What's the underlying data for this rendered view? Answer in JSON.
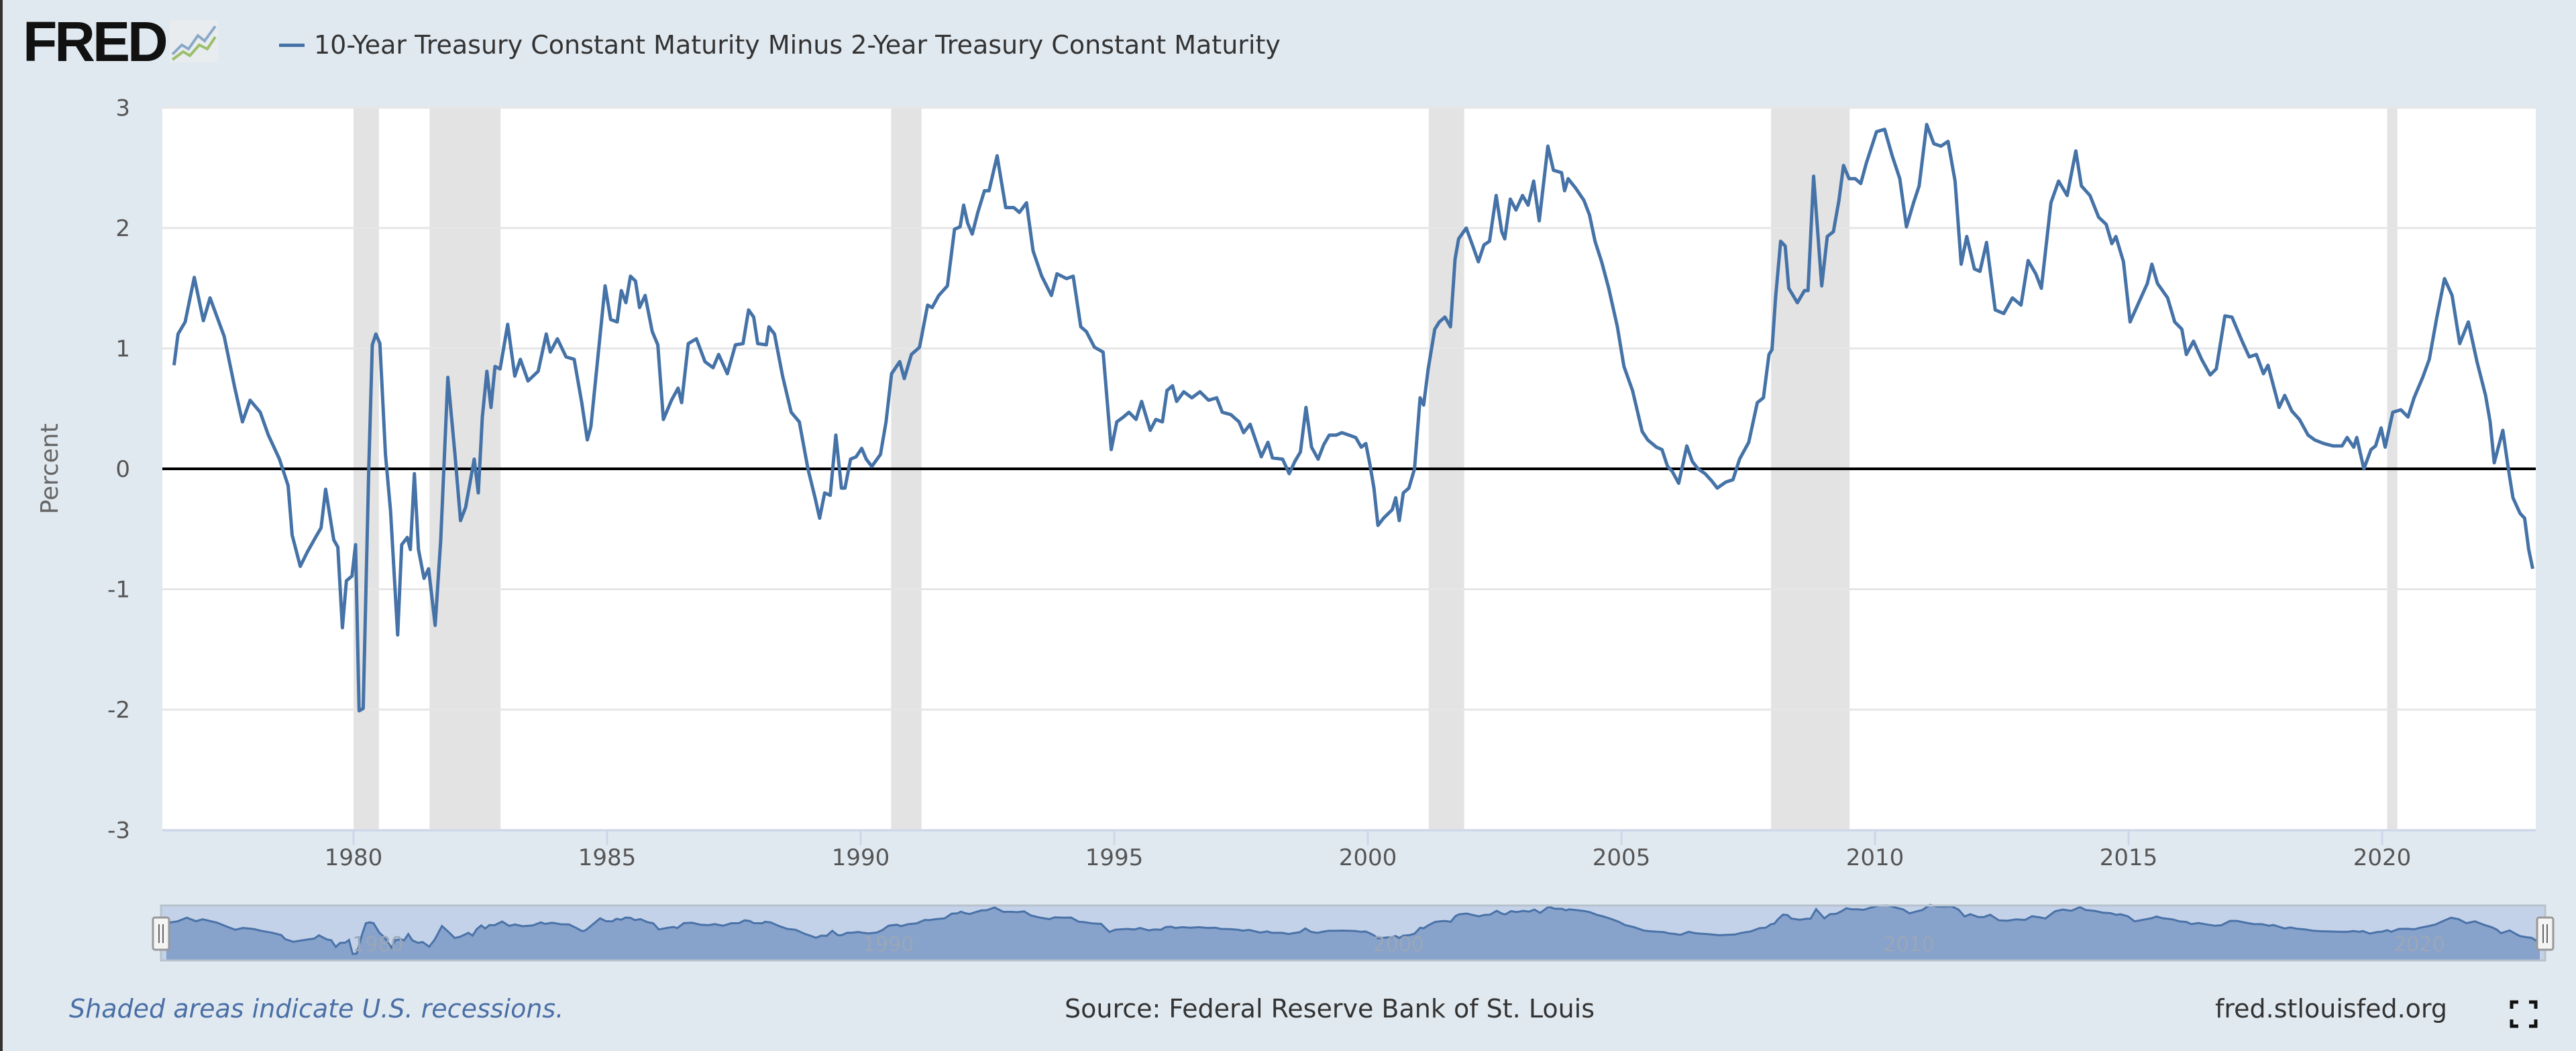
{
  "header": {
    "logo_text": "FRED",
    "logo_icon": "line-chart-icon",
    "series_title": "10-Year Treasury Constant Maturity Minus 2-Year Treasury Constant Maturity"
  },
  "footer": {
    "recession_note": "Shaded areas indicate U.S. recessions.",
    "source": "Source: Federal Reserve Bank of St. Louis",
    "site": "fred.stlouisfed.org",
    "fullscreen_icon": "fullscreen-icon"
  },
  "colors": {
    "line": "#4572a7",
    "recession": "#e3e3e3",
    "background": "#e1e9f0",
    "zero_line": "#000000",
    "navigator_fill": "#87a2cb",
    "navigator_bg": "#c3d2e8"
  },
  "chart_data": {
    "type": "line",
    "title": "10-Year Treasury Constant Maturity Minus 2-Year Treasury Constant Maturity",
    "xlabel": "",
    "ylabel": "Percent",
    "xlim": [
      1976.2,
      2023.0
    ],
    "ylim": [
      -3,
      3
    ],
    "yticks": [
      "3",
      "2",
      "1",
      "0",
      "-1",
      "-2",
      "-3"
    ],
    "yticks_values": [
      3,
      2,
      1,
      0,
      -1,
      -2,
      -3
    ],
    "xticks": [
      "1980",
      "1985",
      "1990",
      "1995",
      "2000",
      "2005",
      "2010",
      "2015",
      "2020"
    ],
    "xticks_values": [
      1980,
      1985,
      1990,
      1995,
      2000,
      2005,
      2010,
      2015,
      2020
    ],
    "navigator_ticks": [
      "1980",
      "1990",
      "2000",
      "2010",
      "2020"
    ],
    "navigator_ticks_values": [
      1980,
      1990,
      2000,
      2010,
      2020
    ],
    "grid": true,
    "legend": "top-left",
    "recessions": [
      [
        1980.0,
        1980.5
      ],
      [
        1981.5,
        1982.9
      ],
      [
        1990.6,
        1991.2
      ],
      [
        2001.2,
        2001.9
      ],
      [
        2007.95,
        2009.5
      ],
      [
        2020.1,
        2020.3
      ]
    ],
    "series": [
      {
        "name": "10-Year Treasury Constant Maturity Minus 2-Year Treasury Constant Maturity",
        "x": [
          1976.46,
          1976.54,
          1976.68,
          1976.86,
          1977.04,
          1977.17,
          1977.45,
          1977.66,
          1977.81,
          1977.96,
          1978.16,
          1978.32,
          1978.54,
          1978.71,
          1978.79,
          1978.95,
          1979.09,
          1979.25,
          1979.36,
          1979.45,
          1979.61,
          1979.69,
          1979.78,
          1979.86,
          1979.97,
          1980.04,
          1980.11,
          1980.19,
          1980.3,
          1980.37,
          1980.44,
          1980.52,
          1980.63,
          1980.73,
          1980.87,
          1980.95,
          1981.06,
          1981.12,
          1981.2,
          1981.28,
          1981.39,
          1981.48,
          1981.61,
          1981.72,
          1981.86,
          1982.0,
          1982.11,
          1982.21,
          1982.38,
          1982.46,
          1982.54,
          1982.63,
          1982.71,
          1982.79,
          1982.89,
          1983.04,
          1983.18,
          1983.29,
          1983.44,
          1983.64,
          1983.8,
          1983.88,
          1984.02,
          1984.19,
          1984.35,
          1984.5,
          1984.61,
          1984.68,
          1984.96,
          1985.07,
          1985.2,
          1985.28,
          1985.37,
          1985.46,
          1985.56,
          1985.64,
          1985.75,
          1985.89,
          1986.0,
          1986.11,
          1986.27,
          1986.4,
          1986.47,
          1986.6,
          1986.76,
          1986.93,
          1987.09,
          1987.2,
          1987.37,
          1987.53,
          1987.68,
          1987.79,
          1987.89,
          1987.97,
          1988.14,
          1988.19,
          1988.3,
          1988.46,
          1988.63,
          1988.79,
          1988.96,
          1989.1,
          1989.19,
          1989.29,
          1989.4,
          1989.51,
          1989.62,
          1989.69,
          1989.8,
          1989.91,
          1990.02,
          1990.11,
          1990.22,
          1990.39,
          1990.5,
          1990.61,
          1990.77,
          1990.86,
          1991.0,
          1991.16,
          1991.32,
          1991.41,
          1991.54,
          1991.71,
          1991.85,
          1991.96,
          1992.03,
          1992.11,
          1992.2,
          1992.31,
          1992.44,
          1992.53,
          1992.69,
          1992.86,
          1993.02,
          1993.13,
          1993.27,
          1993.4,
          1993.57,
          1993.76,
          1993.87,
          1994.06,
          1994.19,
          1994.34,
          1994.45,
          1994.61,
          1994.78,
          1994.94,
          1995.05,
          1995.18,
          1995.29,
          1995.43,
          1995.54,
          1995.71,
          1995.82,
          1995.95,
          1996.04,
          1996.15,
          1996.23,
          1996.37,
          1996.53,
          1996.69,
          1996.86,
          1997.02,
          1997.13,
          1997.3,
          1997.46,
          1997.55,
          1997.68,
          1997.9,
          1998.03,
          1998.12,
          1998.32,
          1998.45,
          1998.56,
          1998.67,
          1998.78,
          1998.89,
          1999.02,
          1999.13,
          1999.24,
          1999.38,
          1999.49,
          1999.63,
          1999.76,
          1999.87,
          1999.96,
          2000.04,
          2000.12,
          2000.2,
          2000.31,
          2000.48,
          2000.55,
          2000.62,
          2000.7,
          2000.81,
          2000.92,
          2001.03,
          2001.1,
          2001.19,
          2001.32,
          2001.41,
          2001.52,
          2001.63,
          2001.72,
          2001.79,
          2001.94,
          2002.07,
          2002.18,
          2002.29,
          2002.4,
          2002.53,
          2002.64,
          2002.7,
          2002.81,
          2002.92,
          2003.05,
          2003.16,
          2003.27,
          2003.38,
          2003.55,
          2003.66,
          2003.82,
          2003.88,
          2003.95,
          2004.1,
          2004.26,
          2004.37,
          2004.48,
          2004.61,
          2004.75,
          2004.92,
          2005.05,
          2005.22,
          2005.41,
          2005.52,
          2005.69,
          2005.8,
          2005.91,
          2006.0,
          2006.13,
          2006.29,
          2006.4,
          2006.51,
          2006.65,
          2006.78,
          2006.89,
          2007.06,
          2007.2,
          2007.33,
          2007.51,
          2007.68,
          2007.8,
          2007.91,
          2007.97,
          2008.04,
          2008.14,
          2008.23,
          2008.3,
          2008.47,
          2008.61,
          2008.68,
          2008.79,
          2008.95,
          2009.06,
          2009.18,
          2009.29,
          2009.38,
          2009.49,
          2009.61,
          2009.72,
          2009.83,
          2010.03,
          2010.19,
          2010.34,
          2010.49,
          2010.62,
          2010.76,
          2010.87,
          2011.02,
          2011.16,
          2011.3,
          2011.44,
          2011.58,
          2011.7,
          2011.81,
          2011.96,
          2012.07,
          2012.2,
          2012.37,
          2012.54,
          2012.71,
          2012.88,
          2013.02,
          2013.17,
          2013.28,
          2013.47,
          2013.62,
          2013.79,
          2013.96,
          2014.07,
          2014.24,
          2014.41,
          2014.56,
          2014.67,
          2014.75,
          2014.9,
          2015.03,
          2015.2,
          2015.37,
          2015.46,
          2015.57,
          2015.77,
          2015.91,
          2016.05,
          2016.14,
          2016.28,
          2016.44,
          2016.61,
          2016.73,
          2016.9,
          2017.04,
          2017.24,
          2017.38,
          2017.52,
          2017.66,
          2017.75,
          2017.97,
          2018.08,
          2018.22,
          2018.37,
          2018.54,
          2018.67,
          2018.85,
          2019.04,
          2019.21,
          2019.31,
          2019.44,
          2019.5,
          2019.64,
          2019.78,
          2019.87,
          2019.98,
          2020.06,
          2020.21,
          2020.37,
          2020.51,
          2020.63,
          2020.8,
          2020.93,
          2021.08,
          2021.23,
          2021.38,
          2021.53,
          2021.7,
          2021.87,
          2022.04,
          2022.13,
          2022.21,
          2022.38,
          2022.49,
          2022.58,
          2022.72,
          2022.81,
          2022.89,
          2022.97
        ],
        "y": [
          0.86,
          1.12,
          1.22,
          1.59,
          1.23,
          1.42,
          1.1,
          0.67,
          0.39,
          0.57,
          0.47,
          0.28,
          0.08,
          -0.14,
          -0.55,
          -0.81,
          -0.69,
          -0.57,
          -0.49,
          -0.17,
          -0.59,
          -0.65,
          -1.32,
          -0.93,
          -0.89,
          -0.63,
          -2.01,
          -1.99,
          0.0,
          1.03,
          1.12,
          1.04,
          0.12,
          -0.35,
          -1.38,
          -0.63,
          -0.57,
          -0.67,
          -0.04,
          -0.67,
          -0.91,
          -0.83,
          -1.3,
          -0.59,
          0.76,
          0.12,
          -0.43,
          -0.32,
          0.08,
          -0.2,
          0.43,
          0.81,
          0.51,
          0.85,
          0.83,
          1.2,
          0.77,
          0.91,
          0.73,
          0.81,
          1.12,
          0.97,
          1.08,
          0.93,
          0.91,
          0.55,
          0.24,
          0.35,
          1.52,
          1.24,
          1.22,
          1.48,
          1.38,
          1.6,
          1.56,
          1.34,
          1.44,
          1.14,
          1.03,
          0.41,
          0.57,
          0.67,
          0.55,
          1.04,
          1.08,
          0.89,
          0.84,
          0.95,
          0.79,
          1.03,
          1.04,
          1.32,
          1.26,
          1.04,
          1.03,
          1.18,
          1.12,
          0.77,
          0.47,
          0.39,
          0.0,
          -0.24,
          -0.41,
          -0.2,
          -0.22,
          0.28,
          -0.16,
          -0.16,
          0.08,
          0.1,
          0.17,
          0.08,
          0.02,
          0.12,
          0.39,
          0.79,
          0.89,
          0.75,
          0.95,
          1.01,
          1.36,
          1.34,
          1.44,
          1.52,
          1.99,
          2.01,
          2.19,
          2.04,
          1.95,
          2.13,
          2.31,
          2.31,
          2.6,
          2.17,
          2.17,
          2.13,
          2.21,
          1.81,
          1.6,
          1.44,
          1.62,
          1.58,
          1.6,
          1.18,
          1.14,
          1.01,
          0.97,
          0.16,
          0.39,
          0.43,
          0.47,
          0.41,
          0.56,
          0.32,
          0.41,
          0.39,
          0.65,
          0.69,
          0.56,
          0.64,
          0.59,
          0.64,
          0.57,
          0.59,
          0.47,
          0.45,
          0.39,
          0.3,
          0.37,
          0.1,
          0.22,
          0.09,
          0.08,
          -0.04,
          0.06,
          0.14,
          0.51,
          0.18,
          0.08,
          0.2,
          0.28,
          0.28,
          0.3,
          0.28,
          0.26,
          0.18,
          0.21,
          0.04,
          -0.16,
          -0.47,
          -0.41,
          -0.34,
          -0.24,
          -0.43,
          -0.2,
          -0.16,
          0.0,
          0.59,
          0.53,
          0.83,
          1.16,
          1.22,
          1.26,
          1.18,
          1.74,
          1.91,
          2.0,
          1.85,
          1.72,
          1.86,
          1.89,
          2.27,
          1.97,
          1.91,
          2.24,
          2.15,
          2.27,
          2.19,
          2.39,
          2.06,
          2.68,
          2.48,
          2.46,
          2.31,
          2.41,
          2.33,
          2.23,
          2.11,
          1.89,
          1.72,
          1.5,
          1.18,
          0.85,
          0.65,
          0.31,
          0.24,
          0.18,
          0.16,
          0.02,
          -0.02,
          -0.12,
          0.19,
          0.06,
          0.0,
          -0.04,
          -0.1,
          -0.16,
          -0.11,
          -0.09,
          0.08,
          0.22,
          0.55,
          0.59,
          0.95,
          0.99,
          1.42,
          1.89,
          1.85,
          1.5,
          1.38,
          1.48,
          1.48,
          2.43,
          1.52,
          1.93,
          1.97,
          2.23,
          2.52,
          2.41,
          2.41,
          2.37,
          2.54,
          2.8,
          2.82,
          2.6,
          2.41,
          2.01,
          2.21,
          2.35,
          2.86,
          2.7,
          2.68,
          2.72,
          2.39,
          1.7,
          1.93,
          1.66,
          1.64,
          1.88,
          1.32,
          1.29,
          1.42,
          1.36,
          1.73,
          1.62,
          1.5,
          2.21,
          2.39,
          2.27,
          2.64,
          2.35,
          2.27,
          2.09,
          2.03,
          1.87,
          1.93,
          1.72,
          1.22,
          1.38,
          1.54,
          1.7,
          1.54,
          1.42,
          1.22,
          1.16,
          0.95,
          1.06,
          0.91,
          0.78,
          0.83,
          1.27,
          1.26,
          1.06,
          0.93,
          0.95,
          0.79,
          0.86,
          0.51,
          0.61,
          0.48,
          0.41,
          0.28,
          0.24,
          0.21,
          0.19,
          0.19,
          0.26,
          0.18,
          0.26,
          0.0,
          0.16,
          0.19,
          0.34,
          0.18,
          0.47,
          0.49,
          0.43,
          0.59,
          0.76,
          0.91,
          1.26,
          1.58,
          1.44,
          1.04,
          1.22,
          0.89,
          0.61,
          0.39,
          0.05,
          0.32,
          0.0,
          -0.24,
          -0.37,
          -0.41,
          -0.67,
          -0.83
        ]
      }
    ]
  }
}
